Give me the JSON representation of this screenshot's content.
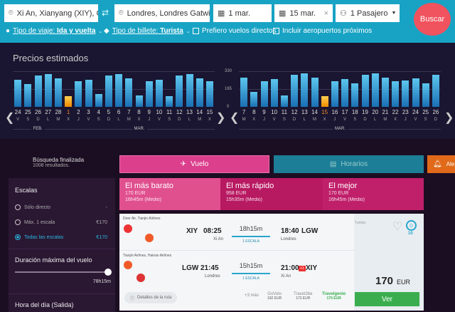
{
  "search": {
    "origin": "Xi An, Xianyang (XIY), China",
    "destination": "Londres, Londres Gatwic ...",
    "depart": "1 mar.",
    "return": "15 mar.",
    "passengers": "1 Pasajero",
    "search_button": "Buscar",
    "trip_type_label": "Tipo de viaje:",
    "trip_type": "Ida y vuelta",
    "ticket_label": "Tipo de billete:",
    "ticket": "Turista",
    "direct_only": "Prefiero vuelos directos",
    "nearby": "Incluir aeropuertos próximos"
  },
  "prices": {
    "title": "Precios estimados",
    "axis": [
      "330",
      "165",
      "0"
    ],
    "chart_data": [
      {
        "type": "bar",
        "ylim": [
          0,
          330
        ],
        "selected": "1",
        "days": [
          "24",
          "25",
          "26",
          "27",
          "28",
          "1",
          "2",
          "3",
          "4",
          "5",
          "6",
          "7",
          "8",
          "9",
          "10",
          "11",
          "12",
          "13",
          "14",
          "15"
        ],
        "weekdays": [
          "V",
          "S",
          "D",
          "L",
          "M",
          "X",
          "J",
          "V",
          "S",
          "D",
          "L",
          "M",
          "X",
          "J",
          "V",
          "S",
          "D",
          "L",
          "M",
          "X"
        ],
        "values": [
          250,
          210,
          289,
          306,
          263,
          98,
          235,
          250,
          117,
          289,
          306,
          267,
          106,
          241,
          254,
          98,
          293,
          306,
          267,
          237
        ],
        "months": [
          "FEB.",
          "MAR."
        ]
      },
      {
        "type": "bar",
        "ylim": [
          0,
          330
        ],
        "selected": "15",
        "days": [
          "7",
          "8",
          "9",
          "10",
          "11",
          "12",
          "13",
          "14",
          "15",
          "16",
          "17",
          "18",
          "19",
          "20",
          "21",
          "22",
          "23",
          "24",
          "25",
          "26"
        ],
        "weekdays": [
          "M",
          "X",
          "J",
          "V",
          "S",
          "D",
          "L",
          "M",
          "X",
          "J",
          "V",
          "S",
          "D",
          "L",
          "M",
          "X",
          "J",
          "V",
          "S",
          "D"
        ],
        "values": [
          270,
          136,
          241,
          256,
          105,
          296,
          308,
          270,
          96,
          241,
          256,
          221,
          296,
          312,
          270,
          241,
          245,
          261,
          221,
          296
        ],
        "months": [
          "MAR."
        ]
      }
    ]
  },
  "status": {
    "title": "Búsqueda finalizada",
    "count": "1008 resultados."
  },
  "tabs": {
    "flight": "Vuelo",
    "schedule": "Horarios",
    "alert": "Ale"
  },
  "filters": {
    "stops_title": "Escalas",
    "stops": [
      {
        "label": "Sólo directo",
        "price": "-"
      },
      {
        "label": "Máx. 1 escala",
        "price": "€170"
      },
      {
        "label": "Todas las escalas",
        "price": "€170"
      }
    ],
    "duration_title": "Duración máxima del vuelo",
    "duration_value": "78h15m",
    "duration_fraction": 1.0,
    "time_title": "Hora del día (Salida)"
  },
  "best": [
    {
      "title": "El más barato",
      "price": "170 EUR",
      "dur": "16h45m (Medio)"
    },
    {
      "title": "El más rápido",
      "price": "958 EUR",
      "dur": "15h35m (Medio)"
    },
    {
      "title": "El mejor",
      "price": "170 EUR",
      "dur": "16h45m (Medio)"
    }
  ],
  "result": {
    "legs": [
      {
        "airlines": "Deer Air, Tianjin Airlines",
        "from": "XIY",
        "dep": "08:25",
        "from_city": "Xi An",
        "dur": "18h15m",
        "stops": "1 ESCALA",
        "arr": "18:40",
        "to": "LGW",
        "to_city": "Londres",
        "plus": ""
      },
      {
        "airlines": "Tianjin Airlines, Hainan Airlines",
        "from": "LGW",
        "dep": "21:45",
        "from_city": "Londres",
        "dur": "15h15m",
        "stops": "1 ESCALA",
        "arr": "21:00",
        "to": "XIY",
        "to_city": "Xi An",
        "plus": "+1"
      }
    ],
    "class": "Turista",
    "score": "10",
    "price": "170",
    "currency": "EUR",
    "view": "Ver",
    "details": "Detalles de la ruta",
    "more": "+3 más",
    "vendors": [
      {
        "name": "GoVolo",
        "price": "192 EUR"
      },
      {
        "name": "Travel2be",
        "price": "173 EUR"
      },
      {
        "name": "Travelgenio",
        "price": "170 EUR"
      }
    ]
  }
}
